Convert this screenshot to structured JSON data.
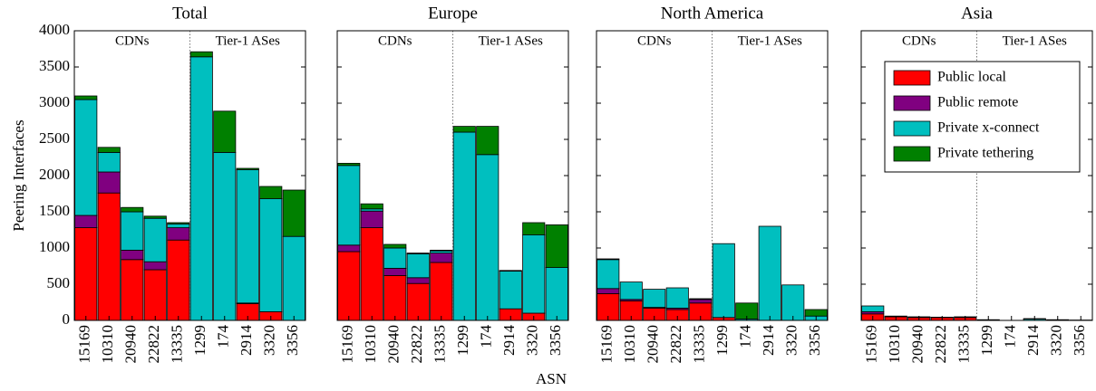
{
  "ylabel": "Peering Interfaces",
  "xlabel": "ASN",
  "chart_data": [
    {
      "type": "stacked_bar",
      "title": "Total",
      "annotations": [
        "CDNs",
        "Tier-1 ASes"
      ],
      "categories": [
        "15169",
        "10310",
        "20940",
        "22822",
        "13335",
        "1299",
        "174",
        "2914",
        "3320",
        "3356"
      ],
      "ylim": [
        0,
        4000
      ],
      "yticks": [
        0,
        500,
        1000,
        1500,
        2000,
        2500,
        3000,
        3500,
        4000
      ],
      "ytick_labels": true,
      "series": [
        {
          "color": "#ff0000",
          "values": [
            1280,
            1760,
            840,
            700,
            1110,
            0,
            0,
            230,
            120,
            0
          ]
        },
        {
          "color": "#800080",
          "values": [
            170,
            290,
            130,
            110,
            170,
            0,
            0,
            10,
            0,
            0
          ]
        },
        {
          "color": "#00bfbf",
          "values": [
            1600,
            270,
            530,
            600,
            50,
            3640,
            2320,
            1840,
            1560,
            1160
          ]
        },
        {
          "color": "#008000",
          "values": [
            50,
            70,
            60,
            30,
            20,
            70,
            570,
            20,
            170,
            640
          ]
        }
      ]
    },
    {
      "type": "stacked_bar",
      "title": "Europe",
      "annotations": [
        "CDNs",
        "Tier-1 ASes"
      ],
      "categories": [
        "15169",
        "10310",
        "20940",
        "22822",
        "13335",
        "1299",
        "174",
        "2914",
        "3320",
        "3356"
      ],
      "ylim": [
        0,
        4000
      ],
      "yticks": [
        0,
        500,
        1000,
        1500,
        2000,
        2500,
        3000,
        3500,
        4000
      ],
      "ytick_labels": false,
      "series": [
        {
          "color": "#ff0000",
          "values": [
            950,
            1280,
            620,
            510,
            800,
            0,
            0,
            160,
            100,
            0
          ]
        },
        {
          "color": "#800080",
          "values": [
            90,
            230,
            100,
            80,
            130,
            0,
            0,
            0,
            0,
            0
          ]
        },
        {
          "color": "#00bfbf",
          "values": [
            1100,
            30,
            280,
            330,
            30,
            2600,
            2290,
            520,
            1080,
            730
          ]
        },
        {
          "color": "#008000",
          "values": [
            30,
            70,
            50,
            10,
            10,
            80,
            390,
            10,
            170,
            590
          ]
        }
      ]
    },
    {
      "type": "stacked_bar",
      "title": "North America",
      "annotations": [
        "CDNs",
        "Tier-1 ASes"
      ],
      "categories": [
        "15169",
        "10310",
        "20940",
        "22822",
        "13335",
        "1299",
        "174",
        "2914",
        "3320",
        "3356"
      ],
      "ylim": [
        0,
        4000
      ],
      "yticks": [
        0,
        500,
        1000,
        1500,
        2000,
        2500,
        3000,
        3500,
        4000
      ],
      "ytick_labels": false,
      "series": [
        {
          "color": "#ff0000",
          "values": [
            370,
            270,
            170,
            150,
            240,
            40,
            0,
            0,
            0,
            0
          ]
        },
        {
          "color": "#800080",
          "values": [
            70,
            20,
            10,
            20,
            50,
            0,
            0,
            0,
            0,
            0
          ]
        },
        {
          "color": "#00bfbf",
          "values": [
            400,
            240,
            250,
            280,
            10,
            1020,
            20,
            1300,
            490,
            60
          ]
        },
        {
          "color": "#008000",
          "values": [
            10,
            0,
            0,
            0,
            0,
            0,
            220,
            0,
            0,
            90
          ]
        }
      ]
    },
    {
      "type": "stacked_bar",
      "title": "Asia",
      "annotations": [
        "CDNs",
        "Tier-1 ASes"
      ],
      "categories": [
        "15169",
        "10310",
        "20940",
        "22822",
        "13335",
        "1299",
        "174",
        "2914",
        "3320",
        "3356"
      ],
      "ylim": [
        0,
        4000
      ],
      "yticks": [
        0,
        500,
        1000,
        1500,
        2000,
        2500,
        3000,
        3500,
        4000
      ],
      "ytick_labels": false,
      "legend": "upper right",
      "series": [
        {
          "name": "Public local",
          "color": "#ff0000",
          "values": [
            90,
            50,
            40,
            40,
            40,
            0,
            0,
            0,
            0,
            0
          ]
        },
        {
          "name": "Public remote",
          "color": "#800080",
          "values": [
            30,
            0,
            5,
            0,
            0,
            0,
            0,
            0,
            0,
            0
          ]
        },
        {
          "name": "Private x-connect",
          "color": "#00bfbf",
          "values": [
            80,
            10,
            5,
            5,
            10,
            10,
            0,
            20,
            10,
            5
          ]
        },
        {
          "name": "Private tethering",
          "color": "#008000",
          "values": [
            0,
            0,
            0,
            0,
            0,
            0,
            0,
            5,
            0,
            0
          ]
        }
      ]
    }
  ]
}
